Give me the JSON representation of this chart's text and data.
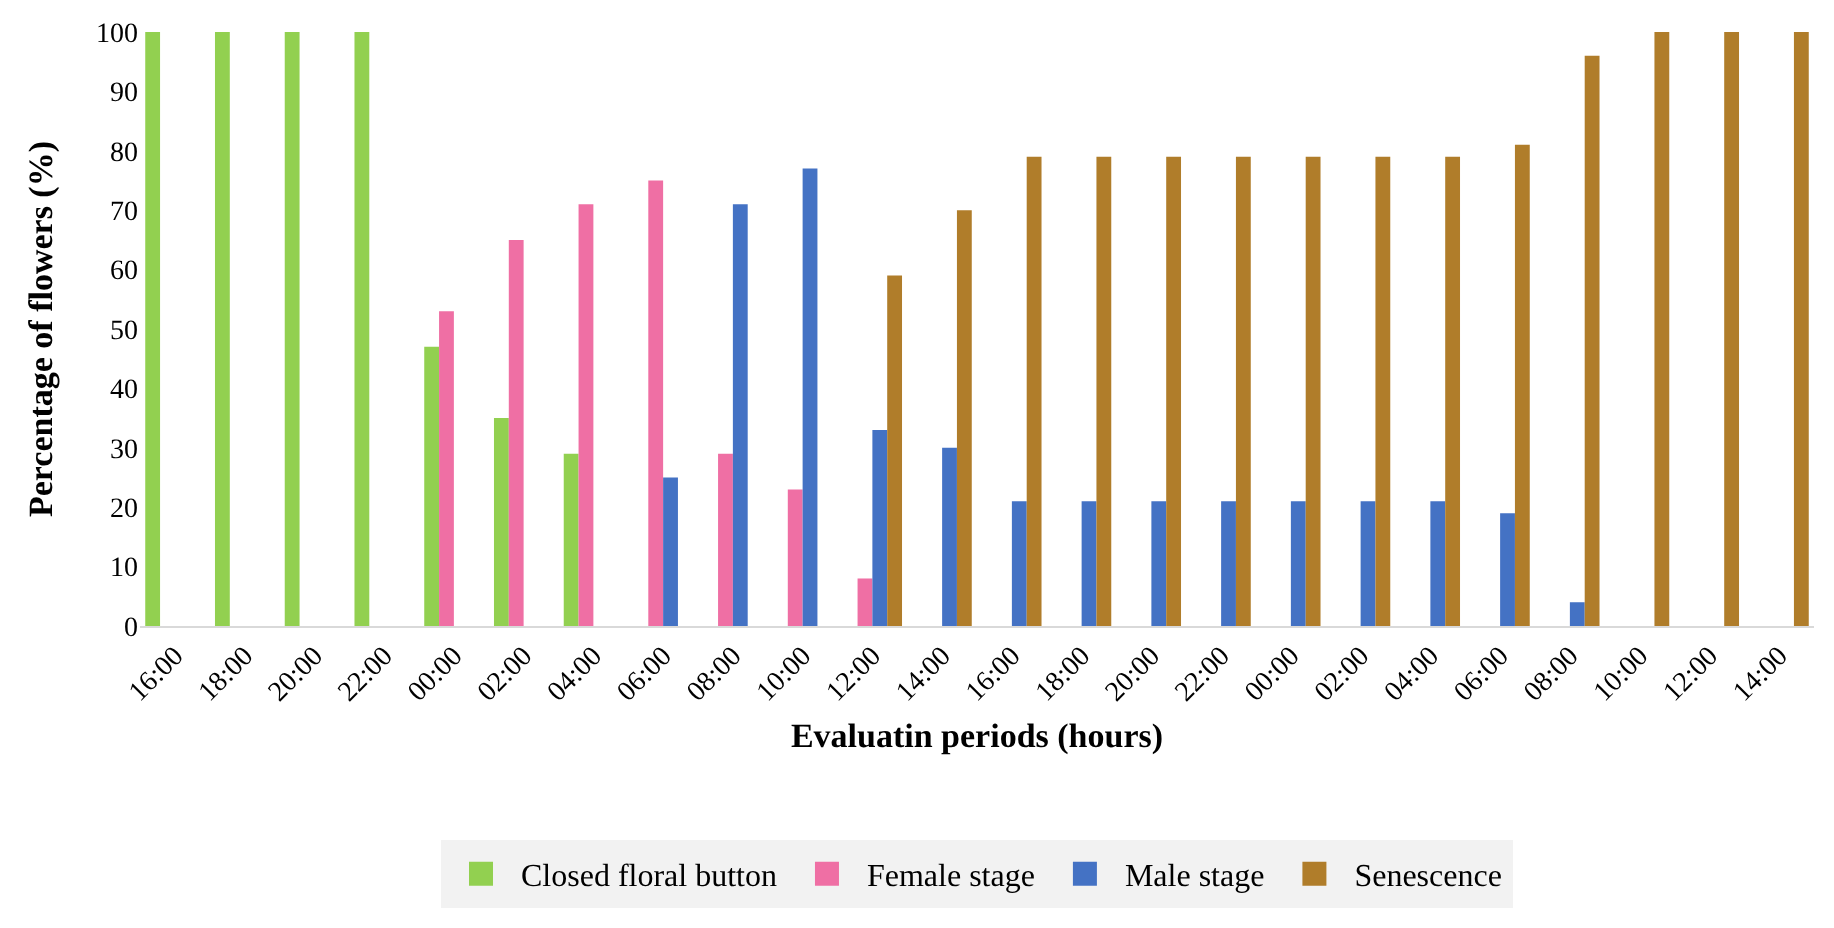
{
  "chart_data": {
    "type": "bar",
    "xlabel": "Evaluatin periods (hours)",
    "ylabel": "Percentage of flowers (%)",
    "categories": [
      "16:00",
      "18:00",
      "20:00",
      "22:00",
      "00:00",
      "02:00",
      "04:00",
      "06:00",
      "08:00",
      "10:00",
      "12:00",
      "14:00",
      "16:00",
      "18:00",
      "20:00",
      "22:00",
      "00:00",
      "02:00",
      "04:00",
      "06:00",
      "08:00",
      "10:00",
      "12:00",
      "14:00"
    ],
    "series": [
      {
        "name": "Closed floral button",
        "color": "#92d050",
        "values": [
          100,
          100,
          100,
          100,
          47,
          35,
          29,
          null,
          null,
          null,
          null,
          null,
          null,
          null,
          null,
          null,
          null,
          null,
          null,
          null,
          null,
          null,
          null,
          null
        ]
      },
      {
        "name": "Female stage",
        "color": "#ef6fa4",
        "values": [
          null,
          null,
          null,
          null,
          53,
          65,
          71,
          75,
          29,
          23,
          8,
          null,
          null,
          null,
          null,
          null,
          null,
          null,
          null,
          null,
          null,
          null,
          null,
          null
        ]
      },
      {
        "name": "Male stage",
        "color": "#4472c4",
        "values": [
          null,
          null,
          null,
          null,
          null,
          null,
          null,
          25,
          71,
          77,
          33,
          30,
          21,
          21,
          21,
          21,
          21,
          21,
          21,
          19,
          4,
          null,
          null,
          null
        ]
      },
      {
        "name": "Senescence",
        "color": "#b07d2a",
        "values": [
          null,
          null,
          null,
          null,
          null,
          null,
          null,
          null,
          null,
          null,
          59,
          70,
          79,
          79,
          79,
          79,
          79,
          79,
          79,
          81,
          96,
          100,
          100,
          100
        ]
      }
    ],
    "ylim": [
      0,
      100
    ],
    "yticks": [
      0,
      10,
      20,
      30,
      40,
      50,
      60,
      70,
      80,
      90,
      100
    ],
    "grid": false,
    "legend": "bottom"
  }
}
